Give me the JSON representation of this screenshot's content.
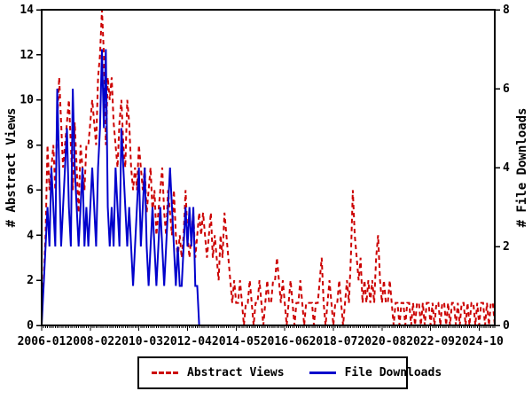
{
  "chart_data": {
    "type": "line",
    "title": "",
    "grid": false,
    "legend_position": "bottom-center",
    "left_axis": {
      "label": "# Abstract Views",
      "range": [
        0,
        14
      ],
      "ticks": [
        0,
        2,
        4,
        6,
        8,
        10,
        12,
        14
      ]
    },
    "right_axis": {
      "label": "# File Downloads",
      "range": [
        0,
        8
      ],
      "ticks": [
        0,
        2,
        4,
        6,
        8
      ]
    },
    "x_axis": {
      "start_month": "2006-01",
      "interval": "monthly",
      "months_total": 234,
      "tick_months": [
        0,
        25,
        50,
        75,
        100,
        125,
        150,
        175,
        200,
        225
      ],
      "tick_labels": [
        "2006-01",
        "2008-02",
        "2010-03",
        "2012-04",
        "2014-05",
        "2016-06",
        "2018-07",
        "2020-08",
        "2022-09",
        "2024-10"
      ]
    },
    "series": [
      {
        "name": "Abstract Views",
        "axis": "left",
        "color": "#cc0000",
        "style": "dashed",
        "values": [
          1,
          2,
          4,
          8,
          6,
          7,
          8,
          6,
          9,
          11,
          9,
          7,
          8,
          9,
          10,
          8,
          6,
          9,
          7,
          5,
          8,
          7,
          6,
          8,
          8,
          9,
          10,
          9,
          8,
          11,
          12,
          14,
          12,
          8,
          11,
          10,
          11,
          9,
          8,
          7,
          9,
          10,
          8,
          7,
          10,
          9,
          7,
          6,
          7,
          6,
          8,
          7,
          6,
          7,
          5,
          6,
          7,
          5,
          6,
          4,
          5,
          6,
          7,
          5,
          4,
          6,
          5,
          4,
          6,
          4,
          3,
          4,
          3,
          4,
          6,
          4,
          3,
          4,
          5,
          3,
          4,
          5,
          4,
          5,
          4,
          3,
          4,
          5,
          3,
          4,
          3,
          2,
          4,
          3,
          5,
          4,
          3,
          2,
          1,
          2,
          1,
          1,
          2,
          1,
          0,
          1,
          1,
          2,
          1,
          0,
          1,
          1,
          2,
          1,
          0,
          1,
          2,
          1,
          1,
          2,
          2,
          3,
          2,
          1,
          2,
          1,
          0,
          1,
          2,
          1,
          0,
          1,
          1,
          2,
          1,
          0,
          1,
          1,
          1,
          1,
          0,
          1,
          1,
          2,
          3,
          1,
          0,
          1,
          2,
          1,
          0,
          1,
          1,
          2,
          1,
          0,
          1,
          2,
          1,
          3,
          6,
          4,
          3,
          2,
          3,
          1,
          2,
          1,
          2,
          1,
          2,
          1,
          3,
          4,
          2,
          1,
          2,
          1,
          1,
          2,
          1,
          0,
          1,
          1,
          0,
          1,
          1,
          0,
          1,
          1,
          0,
          1,
          0,
          1,
          1,
          0,
          1,
          0,
          1,
          1,
          0,
          1,
          0,
          1,
          1,
          0,
          1,
          1,
          0,
          1,
          0,
          1,
          1,
          0,
          1,
          0,
          1,
          1,
          0,
          1,
          0,
          1,
          1,
          0,
          1,
          0,
          1,
          1,
          0,
          1,
          0,
          1,
          1,
          0
        ]
      },
      {
        "name": "File Downloads",
        "axis": "right",
        "color": "#0000cc",
        "style": "solid",
        "values": [
          0,
          1,
          2,
          3,
          2,
          4,
          3,
          2,
          6,
          4,
          2,
          3,
          4,
          5,
          3,
          2,
          6,
          4,
          3,
          2,
          3,
          4,
          2,
          3,
          2,
          3,
          4,
          3,
          2,
          4,
          5,
          7,
          5,
          7,
          3,
          2,
          3,
          2,
          4,
          3,
          2,
          5,
          4,
          3,
          2,
          3,
          2,
          1,
          2,
          3,
          4,
          2,
          3,
          4,
          2,
          1,
          2,
          3,
          2,
          1,
          2,
          3,
          2,
          1,
          2,
          3,
          4,
          3,
          2,
          1,
          2,
          1,
          1,
          2,
          3,
          2,
          3,
          2,
          3,
          1,
          1,
          0,
          0,
          0,
          0,
          0,
          0,
          0,
          0,
          0,
          0,
          0,
          0,
          0,
          0,
          0,
          0,
          0,
          0,
          0,
          0,
          0,
          0,
          0,
          0,
          0,
          0,
          0,
          0,
          0,
          0,
          0,
          0,
          0,
          0,
          0,
          0,
          0,
          0,
          0,
          0,
          0,
          0,
          0,
          0,
          0,
          0,
          0,
          0,
          0,
          0,
          0,
          0,
          0,
          0,
          0,
          0,
          0,
          0,
          0,
          0,
          0,
          0,
          0,
          0,
          0,
          0,
          0,
          0,
          0,
          0,
          0,
          0,
          0,
          0,
          0,
          0,
          0,
          0,
          0,
          0,
          0,
          0,
          0,
          0,
          0,
          0,
          0,
          0,
          0,
          0,
          0,
          0,
          0,
          0,
          0,
          0,
          0,
          0,
          0,
          0,
          0,
          0,
          0,
          0,
          0,
          0,
          0,
          0,
          0,
          0,
          0,
          0,
          0,
          0,
          0,
          0,
          0,
          0,
          0,
          0,
          0,
          0,
          0,
          0,
          0,
          0,
          0,
          0,
          0,
          0,
          0,
          0,
          0,
          0,
          0,
          0,
          0,
          0,
          0,
          0,
          0,
          0,
          0,
          0,
          0,
          0,
          0,
          0,
          0,
          0,
          0,
          0,
          0
        ]
      }
    ],
    "colors": {
      "abstract_views": "#cc0000",
      "file_downloads": "#0000cc",
      "axis": "#000000",
      "background": "#ffffff"
    }
  },
  "legend": {
    "abstract_views_label": "Abstract Views",
    "file_downloads_label": "File Downloads"
  }
}
